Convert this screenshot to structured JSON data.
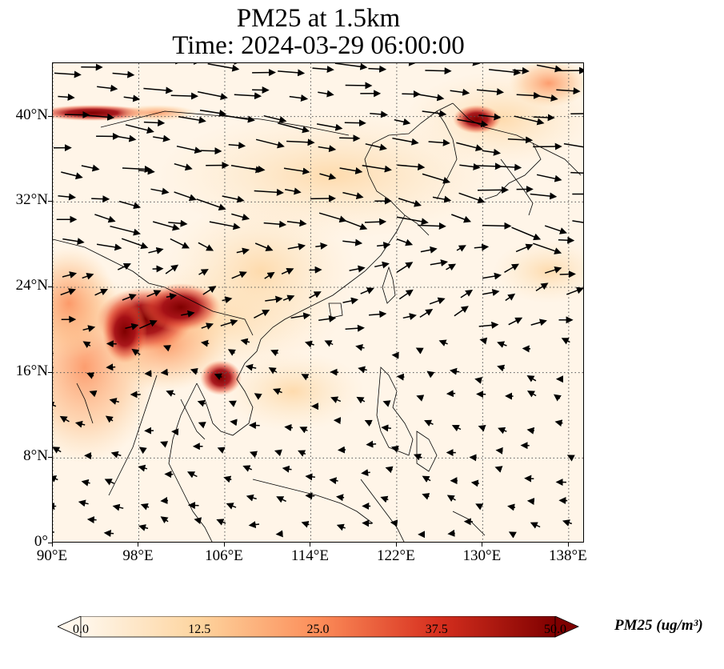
{
  "title": {
    "line1": "PM25 at 1.5km",
    "line2": "Time: 2024-03-29 06:00:00"
  },
  "map": {
    "projection": "PlateCarree",
    "lon_range": [
      90,
      139.5
    ],
    "lat_range": [
      0,
      45
    ],
    "gridlines": "dotted",
    "x_ticks": [
      "90°E",
      "98°E",
      "106°E",
      "114°E",
      "122°E",
      "130°E",
      "138°E"
    ],
    "y_ticks": [
      "0°",
      "8°N",
      "16°N",
      "24°N",
      "32°N",
      "40°N"
    ],
    "variable": "PM25",
    "field_description": "PM2.5 concentration with wind vectors",
    "hotspots": [
      {
        "lon": 100.5,
        "lat": 21.5,
        "value": 50
      },
      {
        "lon": 104.5,
        "lat": 15.5,
        "value": 45
      },
      {
        "lon": 129.5,
        "lat": 39.5,
        "value": 50
      },
      {
        "lon": 96.0,
        "lat": 40.0,
        "value": 40
      }
    ]
  },
  "colorbar": {
    "title": "PM25 (ug/m³)",
    "min": 0.0,
    "max": 50.0,
    "tick_labels": [
      "0.0",
      "12.5",
      "25.0",
      "37.5",
      "50.0"
    ],
    "colormap": "OrRd",
    "colors": [
      "#fff7ec",
      "#fdd49e",
      "#fc8d59",
      "#d7301f",
      "#7f0000"
    ],
    "extend": "both"
  }
}
